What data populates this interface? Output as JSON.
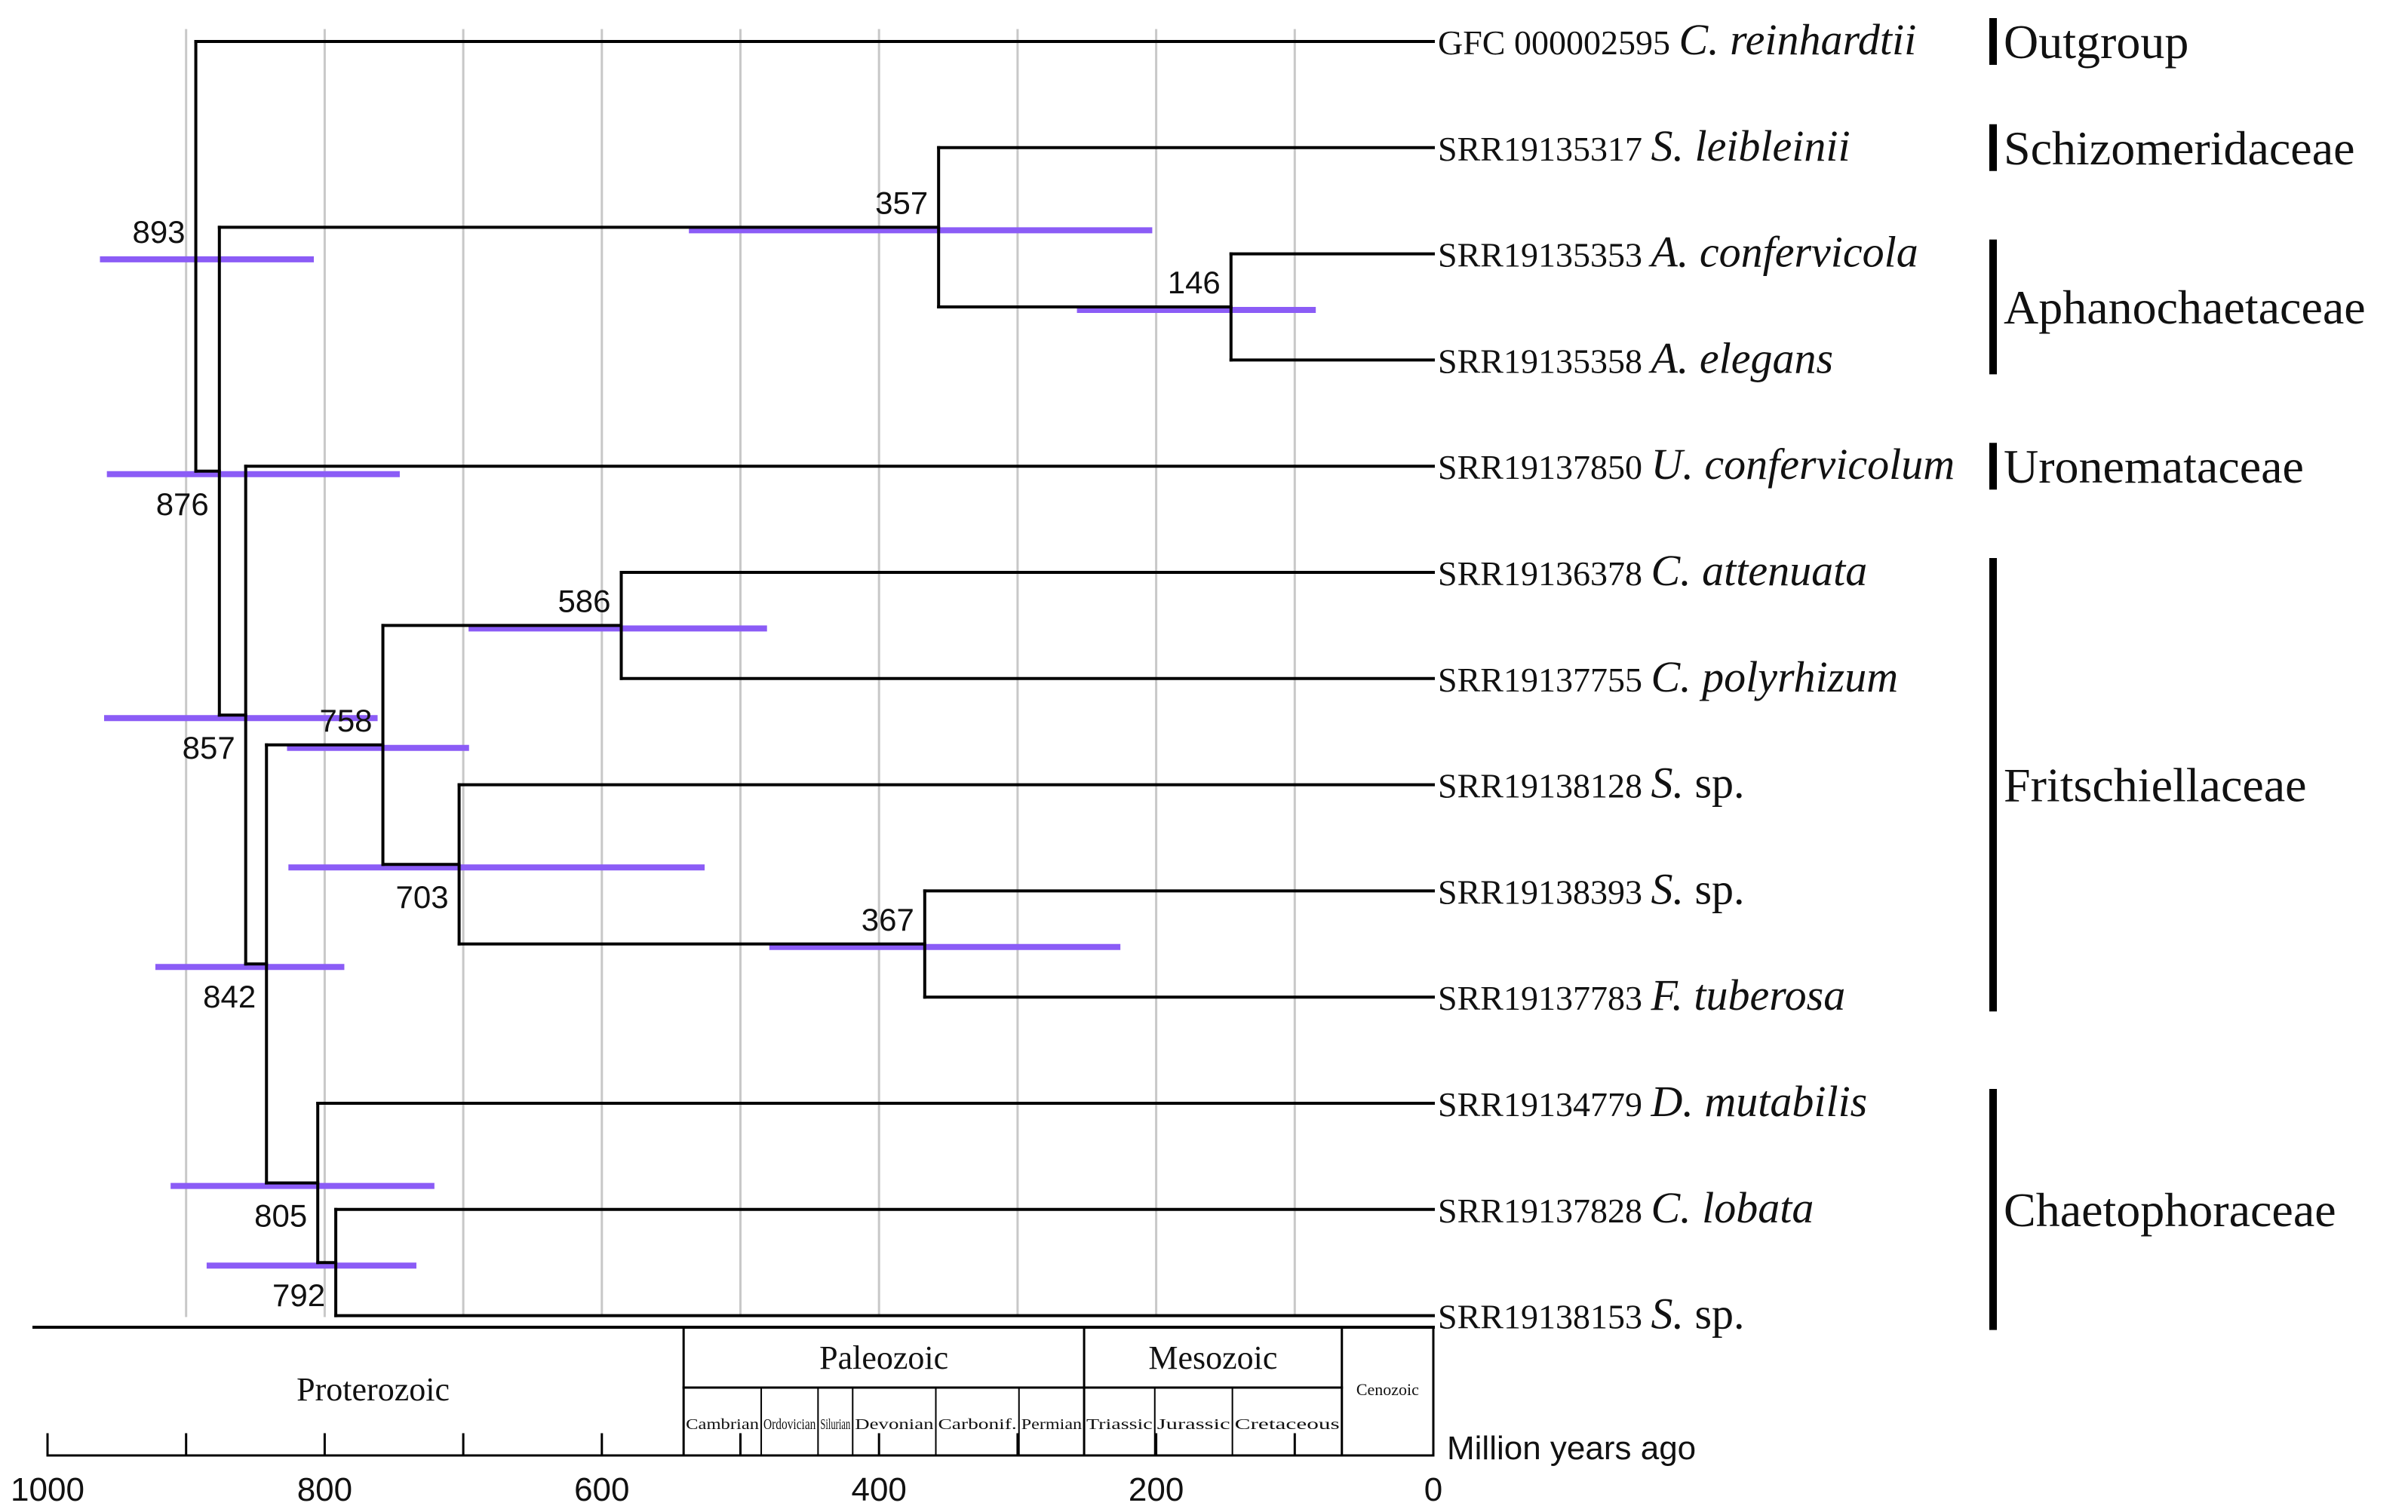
{
  "taxa": [
    {
      "acc": "GFC 000002595",
      "name": "C. reinhardtii",
      "italic": true
    },
    {
      "acc": "SRR19135317",
      "name": "S. leibleinii",
      "italic": true
    },
    {
      "acc": "SRR19135353",
      "name": "A. confervicola",
      "italic": true
    },
    {
      "acc": "SRR19135358",
      "name": "A. elegans",
      "italic": true
    },
    {
      "acc": "SRR19137850",
      "name": "U. confervicolum",
      "italic": true
    },
    {
      "acc": "SRR19136378",
      "name": "C. attenuata",
      "italic": true
    },
    {
      "acc": "SRR19137755",
      "name": "C. polyrhizum",
      "italic": true
    },
    {
      "acc": "SRR19138128",
      "name": "S.",
      "suffix": "sp.",
      "italic": true
    },
    {
      "acc": "SRR19138393",
      "name": "S.",
      "suffix": "sp.",
      "italic": true
    },
    {
      "acc": "SRR19137783",
      "name": "F. tuberosa",
      "italic": true
    },
    {
      "acc": "SRR19134779",
      "name": "D. mutabilis",
      "italic": true
    },
    {
      "acc": "SRR19137828",
      "name": "C. lobata",
      "italic": true
    },
    {
      "acc": "SRR19138153",
      "name": "S.",
      "suffix": "sp.",
      "italic": true
    }
  ],
  "families": [
    {
      "label": "Outgroup",
      "first": 0,
      "last": 0
    },
    {
      "label": "Schizomeridaceae",
      "first": 1,
      "last": 1
    },
    {
      "label": "Aphanochaetaceae",
      "first": 2,
      "last": 3
    },
    {
      "label": "Uronemataceae",
      "first": 4,
      "last": 4
    },
    {
      "label": "Fritschiellaceae",
      "first": 5,
      "last": 9
    },
    {
      "label": "Chaetophoraceae",
      "first": 10,
      "last": 12
    }
  ],
  "nodes": [
    {
      "id": "n893",
      "age": 893,
      "label": "893",
      "ci": [
        960,
        810
      ]
    },
    {
      "id": "n876",
      "age": 876,
      "label": "876",
      "ci": [
        955,
        748
      ]
    },
    {
      "id": "n357",
      "age": 357,
      "label": "357",
      "ci": [
        535,
        205
      ]
    },
    {
      "id": "n146",
      "age": 146,
      "label": "146",
      "ci": [
        255,
        87
      ]
    },
    {
      "id": "n857",
      "age": 857,
      "label": "857",
      "ci": [
        957,
        764
      ]
    },
    {
      "id": "n842",
      "age": 842,
      "label": "842",
      "ci": [
        920,
        788
      ]
    },
    {
      "id": "n758",
      "age": 758,
      "label": "758",
      "ci": [
        825,
        698
      ]
    },
    {
      "id": "n586",
      "age": 586,
      "label": "586",
      "ci": [
        694,
        483
      ]
    },
    {
      "id": "n703",
      "age": 703,
      "label": "703",
      "ci": [
        824,
        528
      ]
    },
    {
      "id": "n367",
      "age": 367,
      "label": "367",
      "ci": [
        477,
        228
      ]
    },
    {
      "id": "n805",
      "age": 805,
      "label": "805",
      "ci": [
        909,
        723
      ]
    },
    {
      "id": "n792",
      "age": 792,
      "label": "792",
      "ci": [
        883,
        736
      ]
    }
  ],
  "tree": {
    "node": "n893",
    "children": [
      {
        "leaf": 0
      },
      {
        "node": "n876",
        "children": [
          {
            "node": "n357",
            "children": [
              {
                "leaf": 1
              },
              {
                "node": "n146",
                "children": [
                  {
                    "leaf": 2
                  },
                  {
                    "leaf": 3
                  }
                ]
              }
            ]
          },
          {
            "node": "n857",
            "children": [
              {
                "leaf": 4
              },
              {
                "node": "n842",
                "children": [
                  {
                    "node": "n758",
                    "children": [
                      {
                        "node": "n586",
                        "children": [
                          {
                            "leaf": 5
                          },
                          {
                            "leaf": 6
                          }
                        ]
                      },
                      {
                        "node": "n703",
                        "children": [
                          {
                            "leaf": 7
                          },
                          {
                            "node": "n367",
                            "children": [
                              {
                                "leaf": 8
                              },
                              {
                                "leaf": 9
                              }
                            ]
                          }
                        ]
                      }
                    ]
                  },
                  {
                    "node": "n805",
                    "children": [
                      {
                        "leaf": 10
                      },
                      {
                        "node": "n792",
                        "children": [
                          {
                            "leaf": 11
                          },
                          {
                            "leaf": 12
                          }
                        ]
                      }
                    ]
                  }
                ]
              }
            ]
          }
        ]
      }
    ]
  },
  "axis": {
    "title": "Million years ago",
    "max": 1000,
    "min": 0,
    "gridlines": [
      900,
      800,
      700,
      600,
      500,
      400,
      300,
      200,
      100
    ],
    "ticks": [
      1000,
      800,
      600,
      400,
      200,
      0
    ],
    "tick_labels": [
      "1000",
      "800",
      "600",
      "400",
      "200",
      "0"
    ]
  },
  "eons": [
    {
      "label": "Proterozoic",
      "start": 1000,
      "end": 541
    },
    {
      "label": "Paleozoic",
      "start": 541,
      "end": 252
    },
    {
      "label": "Mesozoic",
      "start": 252,
      "end": 66
    },
    {
      "label": "Cenozoic",
      "start": 66,
      "end": 0
    }
  ],
  "periods": [
    {
      "label": "Cambrian",
      "start": 541,
      "end": 485
    },
    {
      "label": "Ordovician",
      "start": 485,
      "end": 444
    },
    {
      "label": "Silurian",
      "start": 444,
      "end": 419
    },
    {
      "label": "Devonian",
      "start": 419,
      "end": 359
    },
    {
      "label": "Carbonif.",
      "start": 359,
      "end": 299
    },
    {
      "label": "Permian",
      "start": 299,
      "end": 252
    },
    {
      "label": "Triassic",
      "start": 252,
      "end": 201
    },
    {
      "label": "Jurassic",
      "start": 201,
      "end": 145
    },
    {
      "label": "Cretaceous",
      "start": 145,
      "end": 66
    }
  ],
  "colors": {
    "branch": "#000000",
    "ci_bar": "#8b5cf6",
    "grid": "#c8c8c8"
  }
}
